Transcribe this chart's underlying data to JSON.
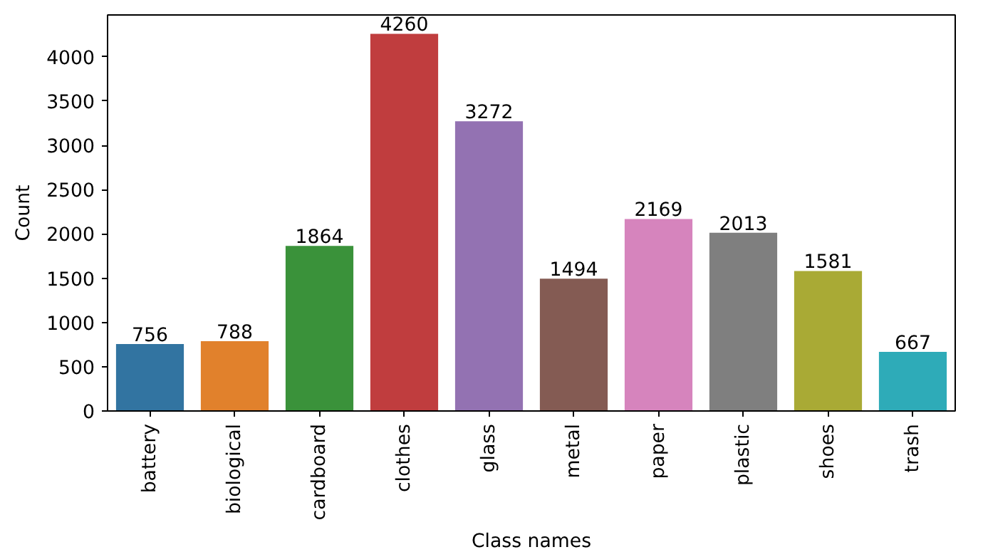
{
  "chart_data": {
    "type": "bar",
    "xlabel": "Class names",
    "ylabel": "Count",
    "categories": [
      "battery",
      "biological",
      "cardboard",
      "clothes",
      "glass",
      "metal",
      "paper",
      "plastic",
      "shoes",
      "trash"
    ],
    "values": [
      756,
      788,
      1864,
      4260,
      3272,
      1494,
      2169,
      2013,
      1581,
      667
    ],
    "colors": [
      "#3274a1",
      "#e1812c",
      "#3a923a",
      "#c03d3e",
      "#9372b2",
      "#845b53",
      "#d684bd",
      "#7f7f7f",
      "#a9aa35",
      "#2eabb8"
    ],
    "ylim": [
      0,
      4473
    ],
    "yticks": [
      0,
      500,
      1000,
      1500,
      2000,
      2500,
      3000,
      3500,
      4000
    ],
    "data_labels": true,
    "grid": false
  }
}
